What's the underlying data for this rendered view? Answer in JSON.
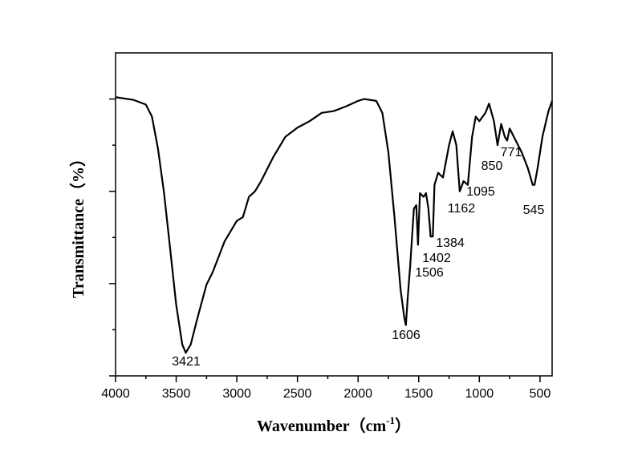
{
  "chart_data": {
    "type": "line",
    "xlabel": {
      "text": "Wavenumber（cm",
      "sup": "-1",
      "end": "）"
    },
    "ylabel": "Transmittance（%）",
    "color": "#000000",
    "x": [
      4000,
      3850,
      3750,
      3700,
      3650,
      3600,
      3550,
      3500,
      3450,
      3421,
      3380,
      3330,
      3250,
      3200,
      3100,
      3000,
      2950,
      2900,
      2850,
      2800,
      2700,
      2600,
      2500,
      2400,
      2300,
      2200,
      2100,
      2000,
      1950,
      1850,
      1800,
      1750,
      1700,
      1650,
      1620,
      1606,
      1590,
      1570,
      1540,
      1520,
      1506,
      1490,
      1460,
      1440,
      1420,
      1402,
      1384,
      1370,
      1340,
      1300,
      1250,
      1220,
      1190,
      1162,
      1130,
      1095,
      1060,
      1030,
      1000,
      950,
      920,
      880,
      850,
      820,
      790,
      771,
      750,
      700,
      650,
      600,
      560,
      545,
      520,
      480,
      430,
      400
    ],
    "values": [
      30.2,
      29.9,
      29.4,
      28.1,
      24.6,
      19.8,
      13.8,
      7.7,
      3.4,
      2.5,
      3.4,
      6.0,
      9.9,
      11.2,
      14.6,
      16.8,
      17.2,
      19.4,
      20.0,
      21.1,
      23.7,
      25.9,
      26.9,
      27.6,
      28.5,
      28.7,
      29.2,
      29.8,
      30.0,
      29.8,
      28.5,
      24.2,
      17.2,
      9.4,
      6.4,
      5.5,
      8.6,
      12.0,
      18.1,
      18.5,
      14.2,
      19.8,
      19.4,
      19.8,
      18.1,
      15.1,
      15.1,
      20.7,
      22.0,
      21.5,
      25.0,
      26.5,
      25.0,
      20.0,
      21.1,
      20.7,
      25.9,
      28.1,
      27.6,
      28.5,
      29.5,
      27.6,
      25.0,
      27.3,
      25.9,
      25.5,
      26.8,
      25.5,
      24.2,
      22.5,
      20.7,
      20.7,
      22.5,
      25.9,
      28.7,
      29.8
    ],
    "xlim": [
      4000,
      400
    ],
    "xticks": [
      4000,
      3500,
      3000,
      2500,
      2000,
      1500,
      1000,
      500
    ],
    "xticks_minor": [
      3750,
      3250,
      2750,
      2250,
      1750,
      1250,
      750
    ],
    "ylim": [
      0,
      35
    ],
    "yticks": [
      0,
      10,
      20,
      30
    ],
    "yticks_minor": [
      5,
      15,
      25
    ],
    "annotations": [
      3421,
      1606,
      1506,
      1402,
      1384,
      1162,
      1095,
      850,
      771,
      545
    ]
  }
}
